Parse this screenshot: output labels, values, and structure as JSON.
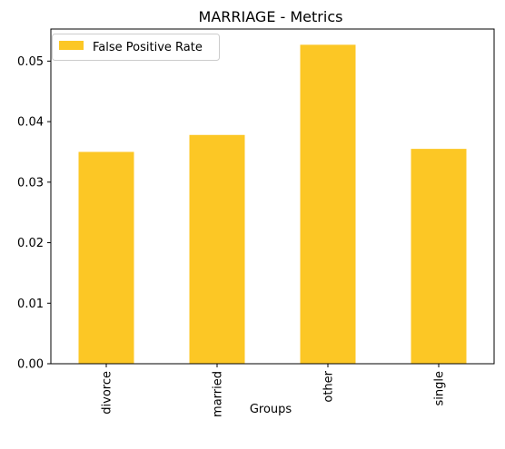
{
  "chart_data": {
    "type": "bar",
    "title": "MARRIAGE - Metrics",
    "xlabel": "Groups",
    "ylabel": "",
    "categories": [
      "divorce",
      "married",
      "other",
      "single"
    ],
    "series": [
      {
        "name": "False Positive Rate",
        "values": [
          0.035,
          0.0378,
          0.0527,
          0.0355
        ],
        "color": "#fcc725"
      }
    ],
    "ylim": [
      0,
      0.0553
    ],
    "yticks": [
      0.0,
      0.01,
      0.02,
      0.03,
      0.04,
      0.05
    ],
    "ytick_labels": [
      "0.00",
      "0.01",
      "0.02",
      "0.03",
      "0.04",
      "0.05"
    ],
    "legend_position": "top-left",
    "grid": false
  }
}
